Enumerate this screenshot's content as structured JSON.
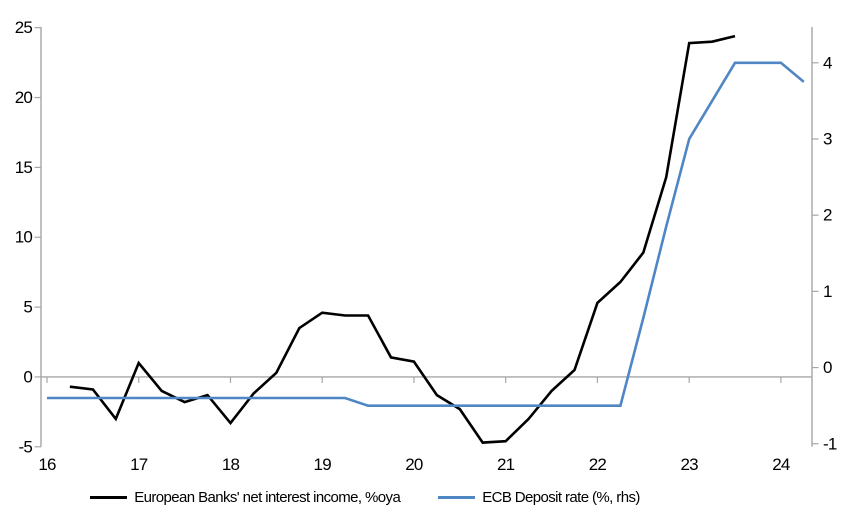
{
  "chart_data": {
    "type": "line",
    "x_domain": [
      16,
      24.35
    ],
    "x_ticks": [
      "16",
      "17",
      "18",
      "19",
      "20",
      "21",
      "22",
      "23",
      "24"
    ],
    "x_tick_values": [
      16,
      17,
      18,
      19,
      20,
      21,
      22,
      23,
      24
    ],
    "left_axis": {
      "ticks": [
        -5,
        0,
        5,
        10,
        15,
        20,
        25
      ],
      "range": [
        -5,
        25.05
      ]
    },
    "right_axis": {
      "ticks": [
        -1,
        0,
        1,
        2,
        3,
        4
      ],
      "range": [
        -1.04,
        4.47
      ]
    },
    "grid": "zero-line-only",
    "legend_position": "bottom",
    "series": [
      {
        "name": "European Banks' net interest income, %oya",
        "axis": "left",
        "color": "#000000",
        "x": [
          16.25,
          16.5,
          16.75,
          17.0,
          17.25,
          17.5,
          17.75,
          18.0,
          18.25,
          18.5,
          18.75,
          19.0,
          19.25,
          19.5,
          19.75,
          20.0,
          20.25,
          20.5,
          20.75,
          21.0,
          21.25,
          21.5,
          21.75,
          22.0,
          22.25,
          22.5,
          22.75,
          23.0,
          23.25,
          23.5
        ],
        "values": [
          -0.7,
          -0.9,
          -3.0,
          1.0,
          -1.0,
          -1.8,
          -1.3,
          -3.3,
          -1.2,
          0.3,
          3.5,
          4.6,
          4.4,
          4.4,
          1.4,
          1.1,
          -1.3,
          -2.3,
          -4.7,
          -4.6,
          -3.0,
          -1.0,
          0.5,
          5.3,
          6.8,
          8.9,
          14.3,
          23.9,
          24.0,
          24.4
        ]
      },
      {
        "name": "ECB Deposit rate (%, rhs)",
        "axis": "right",
        "color": "#4f86c4",
        "x": [
          16.0,
          16.25,
          16.5,
          16.75,
          17.0,
          17.25,
          17.5,
          17.75,
          18.0,
          18.25,
          18.5,
          18.75,
          19.0,
          19.25,
          19.5,
          19.75,
          20.0,
          20.25,
          20.5,
          20.75,
          21.0,
          21.25,
          21.5,
          21.75,
          22.0,
          22.25,
          22.5,
          22.75,
          23.0,
          23.25,
          23.5,
          23.75,
          24.0,
          24.25
        ],
        "values": [
          -0.4,
          -0.4,
          -0.4,
          -0.4,
          -0.4,
          -0.4,
          -0.4,
          -0.4,
          -0.4,
          -0.4,
          -0.4,
          -0.4,
          -0.4,
          -0.4,
          -0.5,
          -0.5,
          -0.5,
          -0.5,
          -0.5,
          -0.5,
          -0.5,
          -0.5,
          -0.5,
          -0.5,
          -0.5,
          -0.5,
          0.65,
          1.85,
          3.0,
          3.5,
          4.0,
          4.0,
          4.0,
          3.75
        ]
      }
    ]
  },
  "colors": {
    "axis": "#a6a6a6",
    "zero_line": "#a6a6a6",
    "background": "#ffffff",
    "text": "#000000",
    "series1": "#000000",
    "series2": "#4f86c4"
  }
}
